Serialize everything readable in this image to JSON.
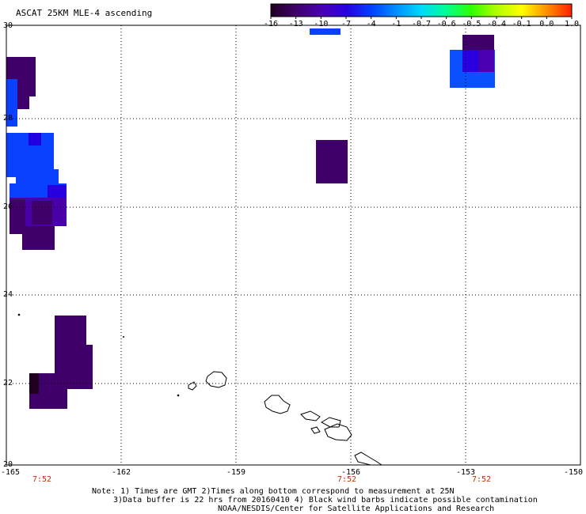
{
  "title": "ASCAT 25KM MLE-4 ascending",
  "colorbar": {
    "labels": [
      "-16",
      "-13",
      "-10",
      "-7",
      "-4",
      "-1",
      "-0.7",
      "-0.6",
      "-0.5",
      "-0.4",
      "-0.1",
      "0.0",
      "1.0"
    ],
    "colors": [
      "#200020",
      "#40006a",
      "#4a00b0",
      "#2a00e0",
      "#0040ff",
      "#0090ff",
      "#00d8ff",
      "#00ff90",
      "#30ff00",
      "#b0ff00",
      "#ffff00",
      "#ff9000",
      "#ff2000"
    ]
  },
  "axes": {
    "lon_labels": [
      "-165",
      "-162",
      "-159",
      "-156",
      "-153",
      "-150"
    ],
    "lat_labels": [
      "30",
      "28",
      "26",
      "24",
      "22",
      "20"
    ]
  },
  "time_labels": [
    "7:52",
    "7:52",
    "7:52"
  ],
  "notes": {
    "line1": "Note: 1) Times are GMT 2)Times along bottom correspond to measurement at 25N",
    "line2": "3)Data buffer is 22 hrs from 20160410 4) Black wind barbs indicate possible contamination",
    "line3": "NOAA/NESDIS/Center for Satellite Applications and Research"
  }
}
